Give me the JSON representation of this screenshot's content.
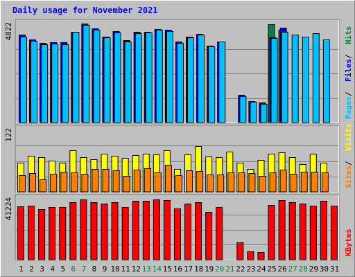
{
  "chart_data": {
    "type": "bar",
    "title": "Daily usage for November 2021",
    "categories": [
      "1",
      "2",
      "3",
      "4",
      "5",
      "6",
      "7",
      "8",
      "9",
      "10",
      "11",
      "12",
      "13",
      "14",
      "15",
      "16",
      "17",
      "18",
      "19",
      "20",
      "21",
      "22",
      "23",
      "24",
      "25",
      "26",
      "27",
      "28",
      "29",
      "30",
      "31"
    ],
    "weekend_days": [
      6,
      7,
      13,
      14,
      20,
      21,
      27,
      28
    ],
    "panels": [
      {
        "id": "top",
        "max_label": "4822",
        "ylim": [
          0,
          4822
        ],
        "series": [
          {
            "name": "Hits",
            "color": "#008040",
            "values": [
              null,
              null,
              null,
              null,
              null,
              null,
              null,
              null,
              null,
              null,
              null,
              null,
              null,
              null,
              null,
              null,
              null,
              null,
              null,
              null,
              null,
              null,
              null,
              null,
              4822,
              4545,
              null,
              null,
              null,
              null,
              null
            ]
          },
          {
            "name": "Files",
            "color": "#0000ff",
            "values": [
              4314,
              4086,
              3894,
              3947,
              3929,
              4454,
              4869,
              4612,
              4209,
              4489,
              4033,
              4454,
              4436,
              4577,
              4542,
              3964,
              4227,
              4348,
              3771,
              3982,
              null,
              1363,
              1059,
              981,
              4174,
              4647,
              null,
              null,
              null,
              null,
              null
            ]
          },
          {
            "name": "Pages",
            "color": "#00c0ff",
            "values": [
              4227,
              4016,
              3824,
              3859,
              3824,
              4436,
              4804,
              4559,
              4174,
              4401,
              3964,
              4384,
              4419,
              4542,
              4489,
              3912,
              4174,
              4296,
              3719,
              3964,
              null,
              1293,
              1011,
              929,
              4139,
              4436,
              4314,
              4209,
              4384,
              4069,
              null
            ]
          }
        ],
        "legend": [
          "Pages",
          "Files",
          "Hits"
        ]
      },
      {
        "id": "middle",
        "max_label": "122",
        "ylim": [
          0,
          122
        ],
        "series": [
          {
            "name": "Visits",
            "color": "#ffff00",
            "values": [
              57,
              71,
              68,
              62,
              58,
              82,
              68,
              64,
              76,
              71,
              67,
              73,
              76,
              74,
              82,
              45,
              74,
              91,
              70,
              68,
              80,
              57,
              45,
              63,
              75,
              78,
              68,
              55,
              76,
              57,
              null
            ]
          },
          {
            "name": "Sites",
            "color": "#ff8000",
            "values": [
              33,
              37,
              25,
              36,
              40,
              39,
              36,
              45,
              45,
              43,
              32,
              44,
              46,
              39,
              53,
              33,
              42,
              41,
              34,
              34,
              39,
              39,
              37,
              31,
              39,
              44,
              36,
              40,
              40,
              39,
              null
            ]
          }
        ],
        "legend": [
          "Sites",
          "Visits"
        ]
      },
      {
        "id": "bottom",
        "max_label": "41224",
        "ylim": [
          0,
          41224
        ],
        "series": [
          {
            "name": "KBytes",
            "color": "#ff0000",
            "values": [
              36386,
              36746,
              34585,
              35826,
              35826,
              39314,
              41224,
              39314,
              38418,
              39314,
              36026,
              40059,
              40059,
              41224,
              40584,
              34985,
              38418,
              39314,
              32900,
              35826,
              null,
              11785,
              5814,
              5065,
              37502,
              40584,
              39314,
              38418,
              36746,
              40059,
              36746
            ]
          }
        ],
        "legend": [
          "KBytes"
        ]
      }
    ]
  }
}
